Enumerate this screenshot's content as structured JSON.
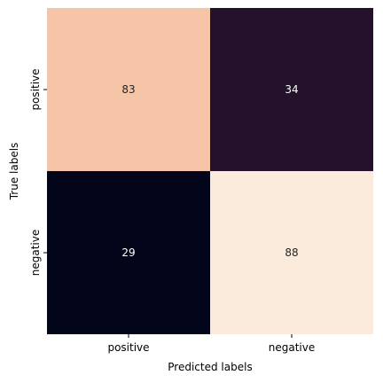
{
  "chart_data": {
    "type": "heatmap",
    "xlabel": "Predicted labels",
    "ylabel": "True labels",
    "x_categories": [
      "positive",
      "negative"
    ],
    "y_categories": [
      "positive",
      "negative"
    ],
    "values": [
      [
        83,
        34
      ],
      [
        29,
        88
      ]
    ],
    "colormap": "rocket",
    "cell_colors": [
      [
        "#f6c4a6",
        "#24112c"
      ],
      [
        "#03051a",
        "#faebdd"
      ]
    ],
    "text_colors": [
      [
        "#262626",
        "#ffffff"
      ],
      [
        "#ffffff",
        "#262626"
      ]
    ],
    "colorbar": false,
    "grid": false
  }
}
